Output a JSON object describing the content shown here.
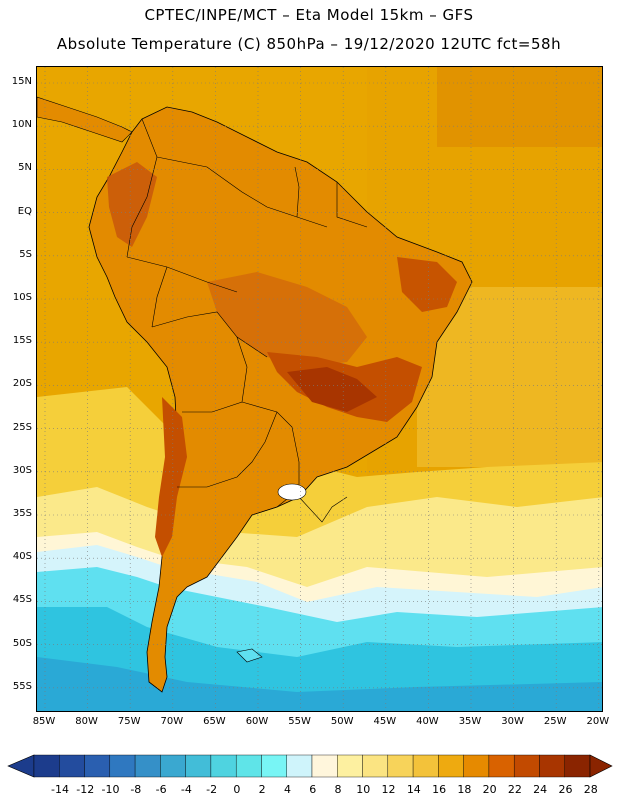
{
  "header": {
    "line1": "CPTEC/INPE/MCT –  Eta Model 15km – GFS",
    "line2": "Absolute Temperature (C) 850hPa – 19/12/2020 12UTC fct=58h"
  },
  "map": {
    "lat_labels": [
      "15N",
      "10N",
      "5N",
      "EQ",
      "5S",
      "10S",
      "15S",
      "20S",
      "25S",
      "30S",
      "35S",
      "40S",
      "45S",
      "50S",
      "55S"
    ],
    "lon_labels": [
      "85W",
      "80W",
      "75W",
      "70W",
      "65W",
      "60W",
      "55W",
      "50W",
      "45W",
      "40W",
      "35W",
      "30W",
      "25W",
      "20W"
    ],
    "colors": {
      "ocean_warm": "#e8a600",
      "land_warm": "#e38b00",
      "land_hot": "#cf5a00",
      "land_hottest": "#b33b00",
      "subtropical": "#f5cf3a",
      "mid": "#fbe98a",
      "cool": "#fff6d6",
      "cold1": "#d5f4fb",
      "cold2": "#5fe0f0",
      "cold3": "#2fc4e0",
      "cold4": "#2aa9d6"
    }
  },
  "colorbar": {
    "labels": [
      "-14",
      "-12",
      "-10",
      "-8",
      "-6",
      "-4",
      "-2",
      "0",
      "2",
      "4",
      "6",
      "8",
      "10",
      "12",
      "14",
      "16",
      "18",
      "20",
      "22",
      "24",
      "26",
      "28"
    ],
    "colors": [
      "#1c3c8c",
      "#234c9e",
      "#2a5fb0",
      "#2f78c0",
      "#3590c8",
      "#3aa8d0",
      "#42bdd8",
      "#4fd3e0",
      "#5fe4e8",
      "#78f5f5",
      "#cff4fb",
      "#fff6dc",
      "#fdf0a0",
      "#fbe482",
      "#f7d35a",
      "#f3c23a",
      "#eeaa10",
      "#e68a00",
      "#d96200",
      "#c24a00",
      "#a83500",
      "#8a2400"
    ]
  }
}
